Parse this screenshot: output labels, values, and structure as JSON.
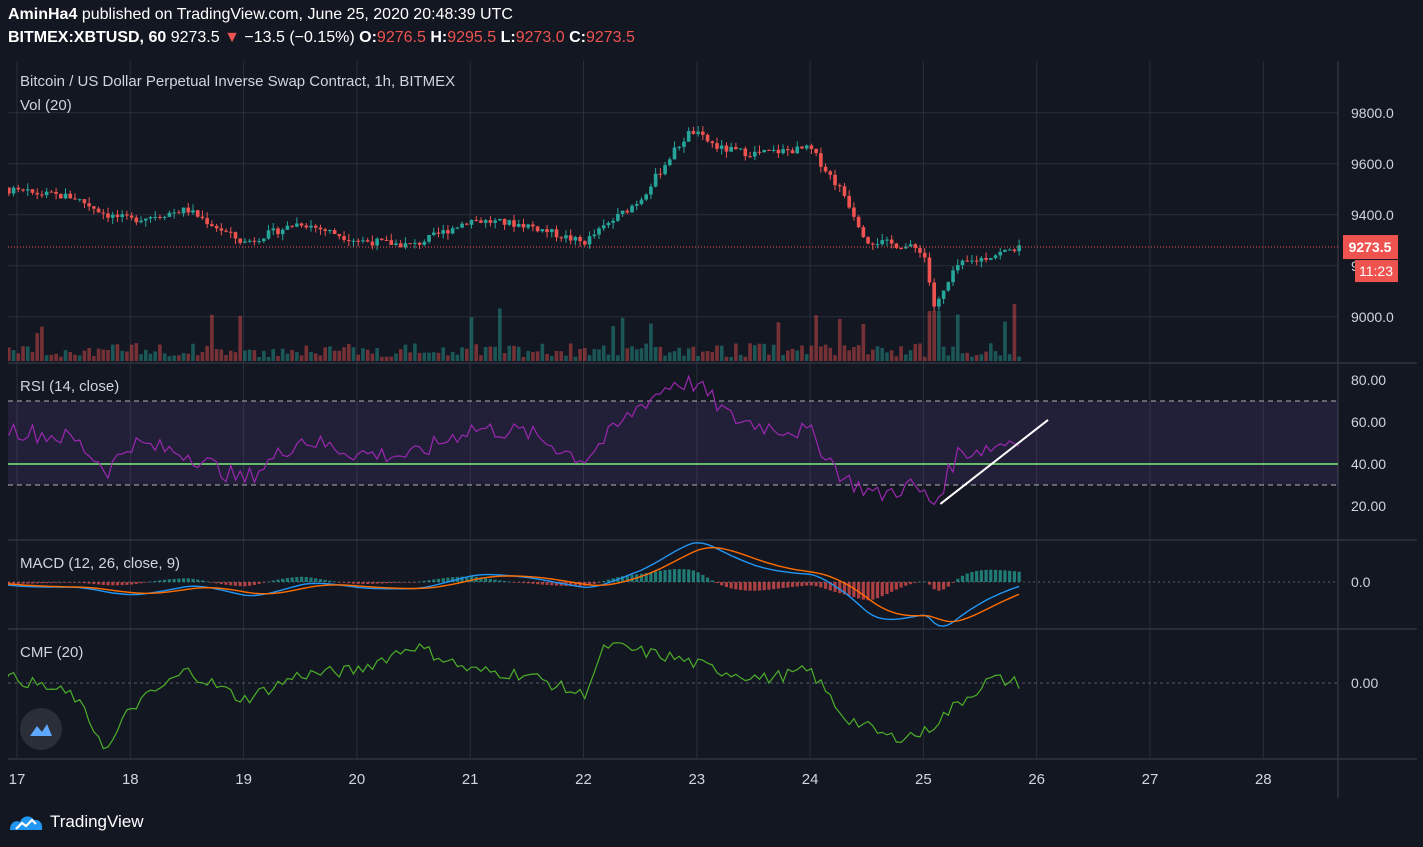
{
  "header": {
    "publisher": "AminHa4",
    "published_text": "published on TradingView.com, June 25, 2020 20:48:39 UTC",
    "symbol": "BITMEX:XBTUSD, 60",
    "last": "9273.5",
    "arrow": "▼",
    "change": "−13.5 (−0.15%)",
    "o_label": "O:",
    "o_value": "9276.5",
    "h_label": "H:",
    "h_value": "9295.5",
    "l_label": "L:",
    "l_value": "9273.0",
    "c_label": "C:",
    "c_value": "9273.5"
  },
  "panes": {
    "main_title": "Bitcoin / US Dollar Perpetual Inverse Swap Contract, 1h, BITMEX",
    "vol_title": "Vol (20)",
    "rsi_title": "RSI (14, close)",
    "macd_title": "MACD (12, 26, close, 9)",
    "cmf_title": "CMF (20)"
  },
  "price_badge": {
    "price": "9273.5",
    "countdown": "11:23"
  },
  "footer": {
    "brand": "TradingView"
  },
  "colors": {
    "background": "#131722",
    "grid": "#2a2e39",
    "up": "#26a69a",
    "down": "#ef5350",
    "rsi": "#9c27b0",
    "macd": "#2196f3",
    "signal": "#ff6d00",
    "cmf": "#4caf28"
  },
  "chart_data": [
    {
      "type": "candlestick",
      "title": "Bitcoin / US Dollar Perpetual Inverse Swap Contract, 1h, BITMEX",
      "x_ticks": [
        "17",
        "18",
        "19",
        "20",
        "21",
        "22",
        "23",
        "24",
        "25",
        "26",
        "27",
        "28"
      ],
      "y_ticks": [
        "9000.0",
        "9200.0",
        "9400.0",
        "9600.0",
        "9800.0"
      ],
      "ylim": [
        8800,
        9900
      ],
      "last_price": 9273.5,
      "series_approx_close": [
        {
          "day": 16.5,
          "value": 9530
        },
        {
          "day": 17.0,
          "value": 9490
        },
        {
          "day": 17.5,
          "value": 9470
        },
        {
          "day": 17.8,
          "value": 9400
        },
        {
          "day": 18.0,
          "value": 9380
        },
        {
          "day": 18.5,
          "value": 9420
        },
        {
          "day": 19.0,
          "value": 9290
        },
        {
          "day": 19.5,
          "value": 9370
        },
        {
          "day": 20.0,
          "value": 9300
        },
        {
          "day": 20.5,
          "value": 9280
        },
        {
          "day": 21.0,
          "value": 9380
        },
        {
          "day": 21.5,
          "value": 9360
        },
        {
          "day": 22.0,
          "value": 9290
        },
        {
          "day": 22.5,
          "value": 9460
        },
        {
          "day": 22.8,
          "value": 9650
        },
        {
          "day": 22.95,
          "value": 9730
        },
        {
          "day": 23.2,
          "value": 9660
        },
        {
          "day": 23.5,
          "value": 9640
        },
        {
          "day": 24.0,
          "value": 9660
        },
        {
          "day": 24.3,
          "value": 9480
        },
        {
          "day": 24.5,
          "value": 9300
        },
        {
          "day": 24.8,
          "value": 9280
        },
        {
          "day": 25.0,
          "value": 9260
        },
        {
          "day": 25.1,
          "value": 9030
        },
        {
          "day": 25.3,
          "value": 9200
        },
        {
          "day": 25.6,
          "value": 9240
        },
        {
          "day": 25.85,
          "value": 9273.5
        }
      ]
    },
    {
      "type": "bar",
      "title": "Vol (20)"
    },
    {
      "type": "line",
      "title": "RSI (14, close)",
      "y_ticks": [
        "20.00",
        "40.00",
        "60.00",
        "80.00"
      ],
      "ylim": [
        17,
        83
      ],
      "bands": [
        30,
        70
      ],
      "levels": [
        40
      ],
      "series": [
        {
          "name": "RSI",
          "values_approx": [
            {
              "day": 16.5,
              "value": 62
            },
            {
              "day": 17.0,
              "value": 56
            },
            {
              "day": 17.5,
              "value": 52
            },
            {
              "day": 17.8,
              "value": 37
            },
            {
              "day": 18.0,
              "value": 50
            },
            {
              "day": 18.5,
              "value": 45
            },
            {
              "day": 19.0,
              "value": 32
            },
            {
              "day": 19.5,
              "value": 52
            },
            {
              "day": 20.0,
              "value": 45
            },
            {
              "day": 20.5,
              "value": 44
            },
            {
              "day": 21.0,
              "value": 57
            },
            {
              "day": 21.5,
              "value": 55
            },
            {
              "day": 22.0,
              "value": 42
            },
            {
              "day": 22.5,
              "value": 68
            },
            {
              "day": 22.8,
              "value": 79
            },
            {
              "day": 23.0,
              "value": 78
            },
            {
              "day": 23.3,
              "value": 62
            },
            {
              "day": 23.6,
              "value": 58
            },
            {
              "day": 24.0,
              "value": 55
            },
            {
              "day": 24.3,
              "value": 33
            },
            {
              "day": 24.6,
              "value": 25
            },
            {
              "day": 24.9,
              "value": 30
            },
            {
              "day": 25.1,
              "value": 21
            },
            {
              "day": 25.3,
              "value": 45
            },
            {
              "day": 25.6,
              "value": 48
            },
            {
              "day": 25.85,
              "value": 53
            }
          ]
        }
      ]
    },
    {
      "type": "line",
      "title": "MACD (12, 26, close, 9)",
      "y_ticks": [
        "0.0"
      ],
      "series": [
        {
          "name": "MACD"
        },
        {
          "name": "Signal"
        },
        {
          "name": "Histogram"
        }
      ]
    },
    {
      "type": "line",
      "title": "CMF (20)",
      "y_ticks": [
        "0.00"
      ],
      "series": [
        {
          "name": "CMF",
          "values_approx": [
            {
              "day": 16.5,
              "value": 0.02
            },
            {
              "day": 17.0,
              "value": 0.01
            },
            {
              "day": 17.5,
              "value": -0.03
            },
            {
              "day": 17.8,
              "value": -0.16
            },
            {
              "day": 18.0,
              "value": -0.06
            },
            {
              "day": 18.5,
              "value": 0.03
            },
            {
              "day": 19.0,
              "value": -0.04
            },
            {
              "day": 19.5,
              "value": 0.02
            },
            {
              "day": 20.0,
              "value": 0.03
            },
            {
              "day": 20.5,
              "value": 0.09
            },
            {
              "day": 21.0,
              "value": 0.03
            },
            {
              "day": 21.5,
              "value": 0.02
            },
            {
              "day": 22.0,
              "value": -0.03
            },
            {
              "day": 22.2,
              "value": 0.09
            },
            {
              "day": 22.8,
              "value": 0.06
            },
            {
              "day": 23.2,
              "value": 0.03
            },
            {
              "day": 23.6,
              "value": 0.01
            },
            {
              "day": 24.0,
              "value": 0.03
            },
            {
              "day": 24.3,
              "value": -0.08
            },
            {
              "day": 24.7,
              "value": -0.13
            },
            {
              "day": 25.0,
              "value": -0.12
            },
            {
              "day": 25.3,
              "value": -0.05
            },
            {
              "day": 25.6,
              "value": 0.01
            },
            {
              "day": 25.85,
              "value": 0.0
            }
          ]
        }
      ]
    }
  ]
}
